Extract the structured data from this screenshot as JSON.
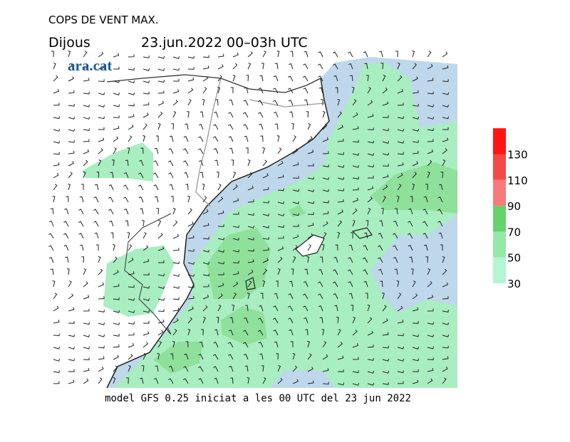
{
  "header": {
    "title": "COPS DE VENT MAX.",
    "day": "Dijous",
    "period": "23.jun.2022 00–03h UTC",
    "logo": "ara.cat"
  },
  "legend": {
    "levels": [
      30,
      50,
      70,
      90,
      110,
      130
    ],
    "colors": [
      "#b4f5d2",
      "#95e8a6",
      "#66d26e",
      "#f77a7a",
      "#f24848",
      "#ff1414"
    ]
  },
  "footer": "model GFS 0.25 iniciat a les 00 UTC del 23 jun 2022"
}
